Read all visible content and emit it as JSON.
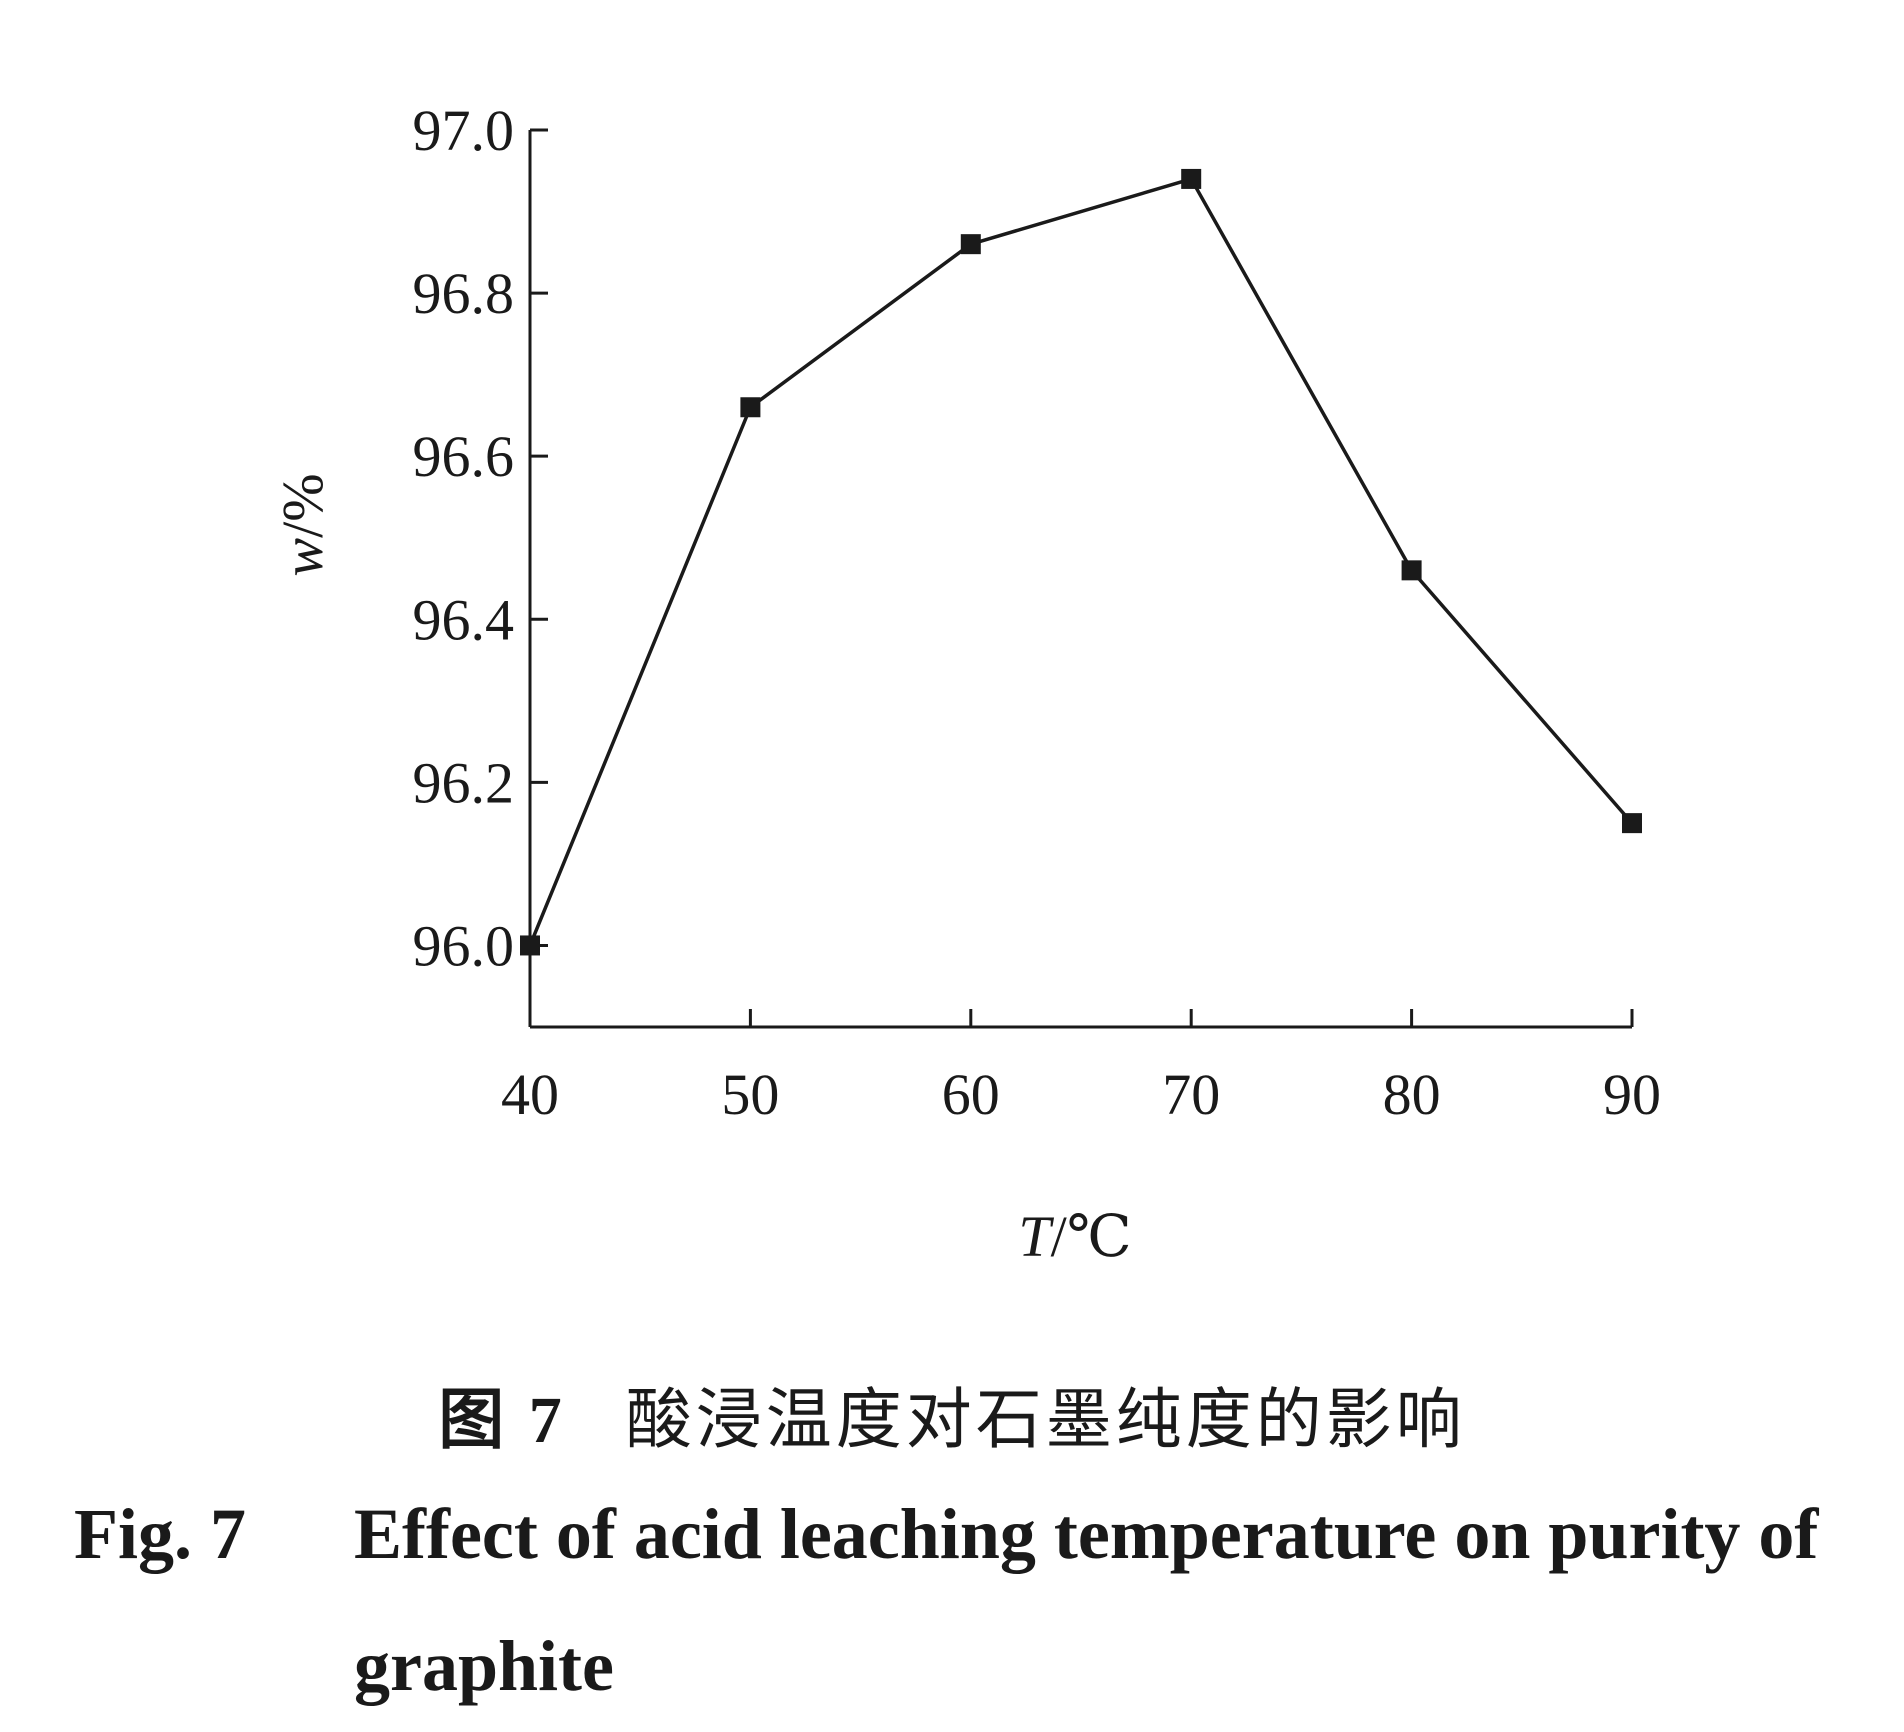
{
  "chart_data": {
    "type": "line",
    "x": [
      40,
      50,
      60,
      70,
      80,
      90
    ],
    "y": [
      96.0,
      96.66,
      96.86,
      96.94,
      96.46,
      96.15
    ],
    "xlabel_var": "T",
    "xlabel_unit": "/℃",
    "ylabel_var": "w",
    "ylabel_unit": "/%",
    "xticks": [
      "40",
      "50",
      "60",
      "70",
      "80",
      "90"
    ],
    "yticks": [
      "96.0",
      "96.2",
      "96.4",
      "96.6",
      "96.8",
      "97.0"
    ],
    "xlim": [
      40,
      90
    ],
    "ylim": [
      95.9,
      97.0
    ],
    "marker": "square",
    "grid": false,
    "line_color": "#1a1a1a"
  },
  "caption": {
    "cn_fig": "图 7",
    "cn_text": "酸浸温度对石墨纯度的影响",
    "en_fig": "Fig. 7",
    "en_text_line1": "Effect of acid leaching temperature on purity of",
    "en_text_line2": "graphite"
  }
}
